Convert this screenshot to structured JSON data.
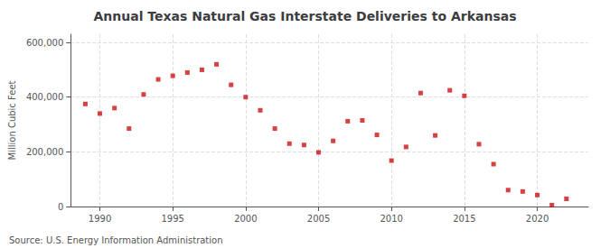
{
  "chart_data": {
    "type": "scatter",
    "title": "Annual Texas Natural Gas Interstate Deliveries to Arkansas",
    "ylabel": "Million Cubic Feet",
    "annotations": [
      "Source: U.S. Energy Information Administration"
    ],
    "x": [
      1989,
      1990,
      1991,
      1992,
      1993,
      1994,
      1995,
      1996,
      1997,
      1998,
      1999,
      2000,
      2001,
      2002,
      2003,
      2004,
      2005,
      2006,
      2007,
      2008,
      2009,
      2010,
      2011,
      2012,
      2013,
      2014,
      2015,
      2016,
      2017,
      2018,
      2019,
      2020,
      2021,
      2022
    ],
    "values": [
      375000,
      340000,
      360000,
      285000,
      410000,
      465000,
      478000,
      490000,
      500000,
      520000,
      445000,
      400000,
      352000,
      285000,
      230000,
      225000,
      198000,
      240000,
      312000,
      315000,
      262000,
      168000,
      218000,
      415000,
      260000,
      425000,
      405000,
      228000,
      155000,
      60000,
      55000,
      42000,
      5000,
      28000
    ],
    "color": "#cc1111",
    "marker": "square",
    "xlim": [
      1988.0,
      2023.5
    ],
    "xticks": [
      1990,
      1995,
      2000,
      2005,
      2010,
      2015,
      2020
    ],
    "ylim": [
      0,
      630000
    ],
    "yticks": [
      0,
      {
        "value": 200000,
        "label": "200,000"
      },
      {
        "value": 400000,
        "label": "400,000"
      },
      {
        "value": 600000,
        "label": "600,000"
      }
    ],
    "grid": true
  }
}
